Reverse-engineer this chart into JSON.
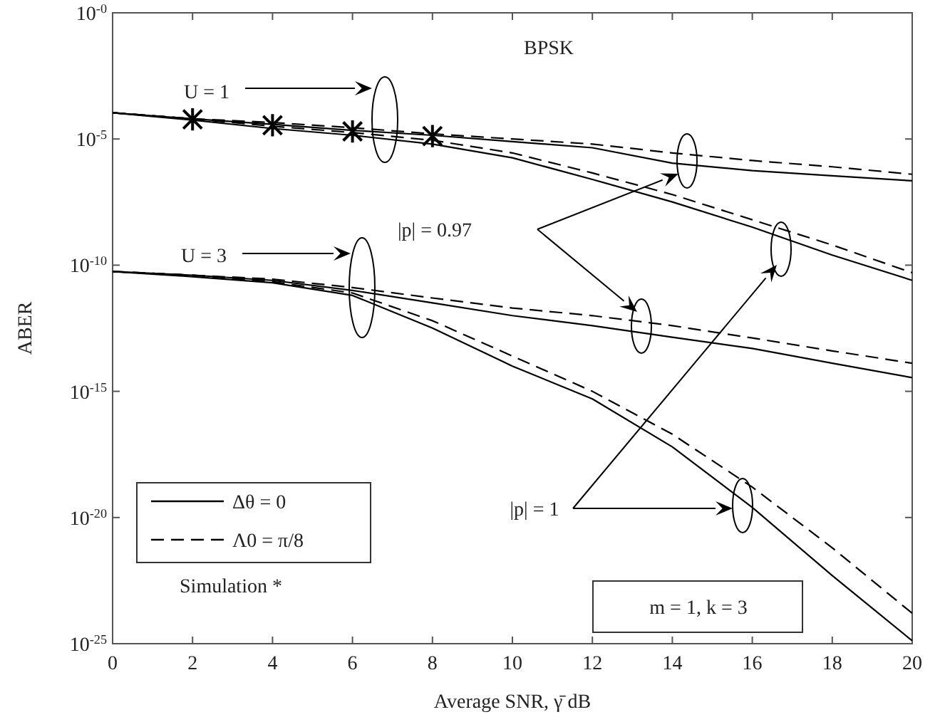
{
  "chart_data": {
    "type": "line",
    "title": "BPSK",
    "xlabel": "Average SNR, γ̄ dB",
    "ylabel": "ABER",
    "log": "y",
    "legend": "bottom left",
    "x": [
      0,
      2,
      4,
      6,
      8,
      10,
      12,
      14,
      16,
      18,
      20
    ],
    "xlim": [
      0,
      20
    ],
    "xticks": [
      0,
      2,
      4,
      6,
      8,
      10,
      12,
      14,
      16,
      18,
      20
    ],
    "ylim": [
      1e-25,
      1
    ],
    "yticks": [
      {
        "value": 1,
        "label": "10$^{-0}$"
      },
      {
        "value": 1e-05,
        "label": "10$^{-5}$"
      },
      {
        "value": 1e-10,
        "label": "10$^{-10}$"
      },
      {
        "value": 1e-15,
        "label": "10$^{-15}$"
      },
      {
        "value": 1e-20,
        "label": "10$^{-20}$"
      },
      {
        "value": 1e-25,
        "label": "10$^{-25}$"
      }
    ],
    "series": [
      {
        "name": "Δθ = 0",
        "color": "#000000",
        "line_style": "solid",
        "values": [
          0.00011,
          6.3e-05,
          3.8e-05,
          2.2e-05,
          1.4e-05,
          7.9e-06,
          4.5e-06,
          1.1e-06,
          5.6e-07,
          3.5e-07,
          2.2e-07
        ]
      },
      {
        "name": "Λ0 = π/8",
        "color": "#000000",
        "line_style": "dashed",
        "values": [
          0.00011,
          6.3e-05,
          4.5e-05,
          2.8e-05,
          1.6e-05,
          1e-05,
          6.3e-06,
          2.8e-06,
          1.4e-06,
          7.9e-07,
          4e-07
        ]
      },
      {
        "color": "#000000",
        "line_style": "solid",
        "values": [
          0.00011,
          5.6e-05,
          2.6e-05,
          1.4e-05,
          6.3e-06,
          1.8e-06,
          2.5e-07,
          3.2e-08,
          3.2e-09,
          2.5e-10,
          2.5e-11
        ]
      },
      {
        "color": "#000000",
        "line_style": "dashed",
        "values": [
          0.00011,
          6.3e-05,
          3.2e-05,
          1.8e-05,
          8.9e-06,
          2.8e-06,
          4.5e-07,
          6.3e-08,
          6.3e-09,
          6.3e-10,
          5e-11
        ]
      },
      {
        "color": "#000000",
        "line_style": "solid",
        "values": [
          5.6e-11,
          4e-11,
          2.5e-11,
          1e-11,
          3.2e-12,
          1e-12,
          4e-13,
          1.4e-13,
          5e-14,
          1.3e-14,
          3.5e-15
        ]
      },
      {
        "color": "#000000",
        "line_style": "dashed",
        "values": [
          5.6e-11,
          4e-11,
          2.8e-11,
          1.3e-11,
          5e-12,
          2e-12,
          1e-12,
          4e-13,
          1.3e-13,
          4e-14,
          1.3e-14
        ]
      },
      {
        "color": "#000000",
        "line_style": "solid",
        "values": [
          5.6e-11,
          3.5e-11,
          2e-11,
          6.3e-12,
          3.2e-13,
          1e-14,
          5e-16,
          6.3e-18,
          2.5e-20,
          5e-23,
          1.3e-25
        ]
      },
      {
        "color": "#000000",
        "line_style": "dashed",
        "values": [
          5.6e-11,
          4e-11,
          2.2e-11,
          7.9e-12,
          6.3e-13,
          2.5e-14,
          1e-15,
          2e-17,
          1.6e-19,
          6.3e-22,
          1.6e-24
        ]
      },
      {
        "type": "scatter",
        "marker": "cross",
        "color": "#000000",
        "x": [
          2,
          4,
          6,
          8
        ],
        "values": [
          6e-05,
          3.5e-05,
          2e-05,
          1.3e-05
        ]
      }
    ],
    "annotations": [
      "U = 1",
      "U = 3",
      "|p| = 0.97",
      "|p| = 1",
      "Simulation *",
      "m = 1, k = 3"
    ]
  }
}
